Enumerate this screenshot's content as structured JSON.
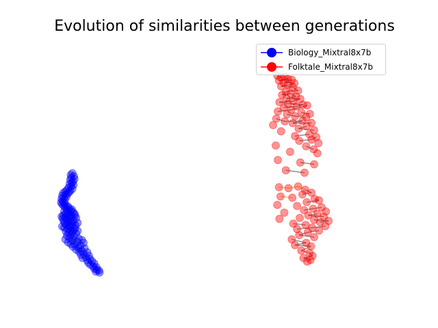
{
  "chart_data": {
    "type": "scatter",
    "title": "Evolution of similarities between generations",
    "xlabel": "",
    "ylabel": "",
    "axes_visible": false,
    "grid": false,
    "legend_position": "top-right",
    "series": [
      {
        "name": "Biology_Mixtral8x7b",
        "color": "#0000ff",
        "points": [
          [
            6.2,
            -0.3
          ],
          [
            6.5,
            0.4
          ],
          [
            6.8,
            -0.8
          ],
          [
            6.3,
            -1.4
          ],
          [
            6.9,
            -1.9
          ],
          [
            6.1,
            -2.3
          ],
          [
            6.6,
            -2.9
          ],
          [
            6.4,
            -3.5
          ],
          [
            6.0,
            -3.9
          ],
          [
            6.7,
            -4.3
          ],
          [
            6.3,
            -4.8
          ],
          [
            5.8,
            -5.4
          ],
          [
            6.5,
            -5.9
          ],
          [
            5.5,
            -6.3
          ],
          [
            6.1,
            -6.6
          ],
          [
            5.2,
            -6.9
          ],
          [
            5.9,
            -7.2
          ],
          [
            4.8,
            -7.5
          ],
          [
            5.6,
            -7.8
          ],
          [
            5.2,
            -8.2
          ],
          [
            4.6,
            -8.6
          ],
          [
            5.4,
            -9.0
          ],
          [
            4.9,
            -9.4
          ],
          [
            4.5,
            -9.9
          ],
          [
            5.1,
            -10.3
          ],
          [
            4.7,
            -10.8
          ],
          [
            4.4,
            -11.3
          ],
          [
            5.0,
            -11.6
          ],
          [
            4.6,
            -12.0
          ],
          [
            5.3,
            -12.4
          ],
          [
            4.9,
            -12.7
          ],
          [
            5.7,
            -13.0
          ],
          [
            5.2,
            -13.3
          ],
          [
            5.9,
            -13.7
          ],
          [
            6.4,
            -14.1
          ],
          [
            5.5,
            -14.3
          ],
          [
            6.2,
            -14.6
          ],
          [
            5.0,
            -14.9
          ],
          [
            6.6,
            -15.2
          ],
          [
            5.7,
            -15.5
          ],
          [
            6.9,
            -15.8
          ],
          [
            5.3,
            -15.9
          ],
          [
            6.1,
            -16.2
          ],
          [
            4.8,
            -16.4
          ],
          [
            7.0,
            -16.5
          ],
          [
            5.9,
            -16.8
          ],
          [
            4.5,
            -17.0
          ],
          [
            6.4,
            -17.1
          ],
          [
            5.2,
            -17.4
          ],
          [
            7.2,
            -17.5
          ],
          [
            4.7,
            -17.8
          ],
          [
            6.0,
            -18.0
          ],
          [
            5.5,
            -18.3
          ],
          [
            6.7,
            -18.5
          ],
          [
            4.9,
            -18.8
          ],
          [
            6.3,
            -19.0
          ],
          [
            5.8,
            -19.3
          ],
          [
            7.5,
            -19.5
          ],
          [
            5.1,
            -19.6
          ],
          [
            6.5,
            -19.9
          ],
          [
            5.4,
            -20.2
          ],
          [
            7.1,
            -20.4
          ],
          [
            5.9,
            -20.7
          ],
          [
            4.6,
            -20.9
          ],
          [
            6.2,
            -21.1
          ],
          [
            5.0,
            -21.4
          ],
          [
            7.0,
            -21.6
          ],
          [
            5.6,
            -21.9
          ],
          [
            6.8,
            -22.2
          ],
          [
            6.1,
            -22.4
          ],
          [
            7.5,
            -22.7
          ],
          [
            5.3,
            -22.9
          ],
          [
            6.5,
            -23.2
          ],
          [
            5.8,
            -23.5
          ],
          [
            7.2,
            -23.8
          ],
          [
            6.3,
            -24.3
          ],
          [
            5.5,
            -24.6
          ],
          [
            6.8,
            -25.0
          ],
          [
            6.0,
            -25.5
          ],
          [
            7.7,
            -25.8
          ],
          [
            5.2,
            -26.1
          ],
          [
            8.3,
            -26.4
          ],
          [
            6.5,
            -26.6
          ],
          [
            7.4,
            -27.0
          ],
          [
            5.7,
            -27.3
          ],
          [
            8.6,
            -27.5
          ],
          [
            6.2,
            -27.9
          ],
          [
            7.0,
            -28.3
          ],
          [
            8.0,
            -28.6
          ],
          [
            6.6,
            -29.0
          ],
          [
            7.6,
            -29.4
          ],
          [
            8.8,
            -29.7
          ],
          [
            7.2,
            -30.2
          ],
          [
            8.2,
            -30.6
          ],
          [
            7.8,
            -31.1
          ],
          [
            9.3,
            -31.3
          ],
          [
            8.6,
            -31.8
          ],
          [
            8.1,
            -32.3
          ],
          [
            9.6,
            -32.7
          ],
          [
            9.0,
            -33.2
          ],
          [
            8.4,
            -33.6
          ],
          [
            9.8,
            -34.0
          ],
          [
            9.3,
            -34.5
          ],
          [
            10.2,
            -34.9
          ],
          [
            9.5,
            -35.5
          ],
          [
            10.6,
            -35.8
          ],
          [
            9.9,
            -36.3
          ],
          [
            10.4,
            -36.9
          ],
          [
            11.0,
            -37.3
          ],
          [
            10.6,
            -37.8
          ],
          [
            11.1,
            -38.3
          ],
          [
            11.5,
            -38.6
          ],
          [
            10.9,
            -39.0
          ],
          [
            11.6,
            -39.4
          ]
        ]
      },
      {
        "name": "Folktale_Mixtral8x7b",
        "color": "#ff0000",
        "points": [
          [
            44.9,
            39.5
          ],
          [
            45.6,
            38.7
          ],
          [
            46.3,
            39.1
          ],
          [
            46.9,
            38.2
          ],
          [
            45.2,
            37.6
          ],
          [
            47.6,
            37.9
          ],
          [
            46.1,
            36.8
          ],
          [
            48.1,
            36.5
          ],
          [
            46.9,
            35.7
          ],
          [
            45.6,
            35.3
          ],
          [
            47.8,
            34.9
          ],
          [
            48.8,
            33.5
          ],
          [
            46.5,
            33.1
          ],
          [
            45.8,
            31.8
          ],
          [
            47.4,
            32.4
          ],
          [
            48.4,
            31.2
          ],
          [
            46.6,
            30.4
          ],
          [
            49.2,
            30.2
          ],
          [
            47.9,
            29.3
          ],
          [
            45.3,
            28.9
          ],
          [
            46.9,
            28.3
          ],
          [
            49.7,
            27.9
          ],
          [
            48.5,
            27.2
          ],
          [
            46.1,
            26.7
          ],
          [
            50.5,
            27.6
          ],
          [
            47.5,
            25.8
          ],
          [
            45.0,
            25.2
          ],
          [
            49.4,
            24.8
          ],
          [
            51.0,
            24.2
          ],
          [
            46.7,
            24.0
          ],
          [
            48.2,
            23.3
          ],
          [
            50.3,
            22.8
          ],
          [
            44.7,
            22.3
          ],
          [
            46.3,
            21.2
          ],
          [
            49.6,
            21.4
          ],
          [
            47.8,
            20.5
          ],
          [
            51.3,
            20.6
          ],
          [
            44.1,
            19.7
          ],
          [
            50.4,
            19.2
          ],
          [
            48.9,
            18.3
          ],
          [
            51.8,
            17.7
          ],
          [
            45.6,
            17.2
          ],
          [
            50.9,
            16.0
          ],
          [
            48.2,
            15.3
          ],
          [
            52.2,
            14.9
          ],
          [
            51.3,
            13.9
          ],
          [
            49.0,
            13.4
          ],
          [
            52.6,
            12.5
          ],
          [
            44.6,
            11.5
          ],
          [
            50.3,
            11.2
          ],
          [
            51.7,
            10.0
          ],
          [
            47.3,
            9.0
          ],
          [
            52.4,
            8.4
          ],
          [
            45.0,
            5.7
          ],
          [
            49.2,
            4.7
          ],
          [
            51.8,
            4.0
          ],
          [
            46.5,
            1.6
          ],
          [
            50.0,
            0.6
          ],
          [
            45.2,
            -5.2
          ],
          [
            47.0,
            -5.6
          ],
          [
            48.8,
            -4.9
          ],
          [
            50.1,
            -6.2
          ],
          [
            51.3,
            -7.4
          ],
          [
            49.6,
            -8.1
          ],
          [
            45.5,
            -8.9
          ],
          [
            47.7,
            -9.4
          ],
          [
            51.9,
            -9.9
          ],
          [
            52.7,
            -10.5
          ],
          [
            50.4,
            -11.2
          ],
          [
            44.9,
            -12.3
          ],
          [
            48.6,
            -12.7
          ],
          [
            53.2,
            -13.3
          ],
          [
            51.6,
            -13.8
          ],
          [
            49.9,
            -14.4
          ],
          [
            54.0,
            -14.9
          ],
          [
            46.2,
            -15.4
          ],
          [
            52.4,
            -15.9
          ],
          [
            50.7,
            -16.5
          ],
          [
            53.6,
            -17.0
          ],
          [
            49.1,
            -17.5
          ],
          [
            45.3,
            -17.9
          ],
          [
            51.8,
            -18.3
          ],
          [
            54.5,
            -18.7
          ],
          [
            52.9,
            -19.2
          ],
          [
            47.9,
            -19.8
          ],
          [
            50.2,
            -20.3
          ],
          [
            53.9,
            -20.8
          ],
          [
            51.4,
            -21.4
          ],
          [
            48.6,
            -22.0
          ],
          [
            52.7,
            -22.6
          ],
          [
            50.6,
            -23.3
          ],
          [
            49.0,
            -24.4
          ],
          [
            51.8,
            -25.2
          ],
          [
            47.6,
            -26.1
          ],
          [
            50.3,
            -27.5
          ],
          [
            48.2,
            -28.4
          ],
          [
            51.2,
            -28.9
          ],
          [
            49.4,
            -30.6
          ],
          [
            50.9,
            -31.5
          ],
          [
            51.5,
            -32.7
          ],
          [
            49.8,
            -33.6
          ],
          [
            51.1,
            -34.4
          ],
          [
            50.5,
            -35.0
          ]
        ]
      }
    ]
  }
}
